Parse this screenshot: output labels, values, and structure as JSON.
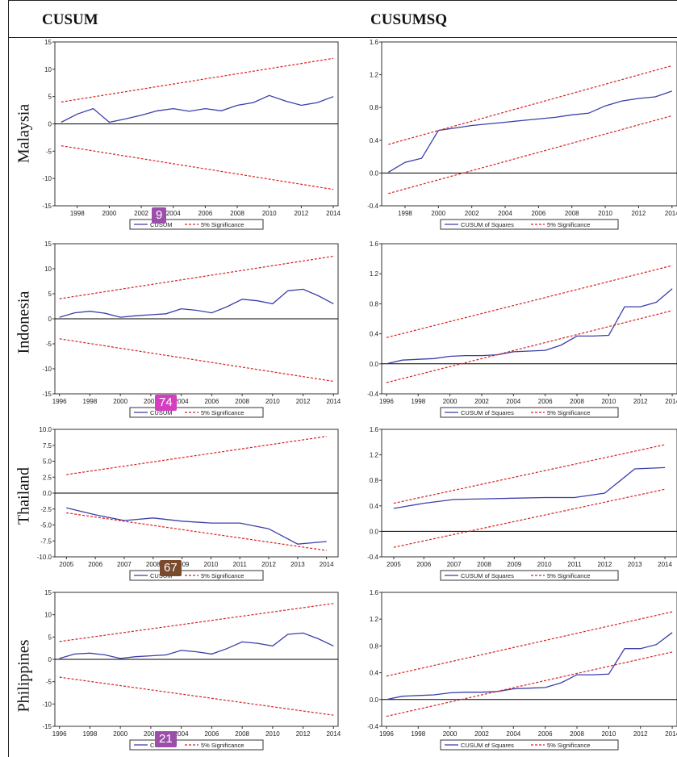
{
  "headers": {
    "cusum": "CUSUM",
    "cusumsq": "CUSUMSQ"
  },
  "rows": [
    {
      "label": "Malaysia"
    },
    {
      "label": "Indonesia"
    },
    {
      "label": "Thailand"
    },
    {
      "label": "Philippines"
    }
  ],
  "badges": [
    {
      "text": "9",
      "color": "#9b4fa8"
    },
    {
      "text": "74",
      "color": "#d63ec2"
    },
    {
      "text": "67",
      "color": "#7a4a2c"
    },
    {
      "text": "21",
      "color": "#9b4fa8"
    }
  ],
  "chart_data": [
    {
      "id": "malaysia-cusum",
      "type": "line",
      "x": [
        1997,
        1998,
        1999,
        2000,
        2001,
        2002,
        2003,
        2004,
        2005,
        2006,
        2007,
        2008,
        2009,
        2010,
        2011,
        2012,
        2013,
        2014
      ],
      "series": [
        {
          "name": "CUSUM",
          "color": "#3b3fa8",
          "style": "solid",
          "values": [
            0.3,
            1.8,
            2.8,
            0.3,
            0.9,
            1.6,
            2.4,
            2.8,
            2.3,
            2.8,
            2.4,
            3.4,
            3.9,
            5.2,
            4.2,
            3.4,
            3.9,
            5.0
          ]
        },
        {
          "name": "5% Significance",
          "color": "#d62020",
          "style": "dashed",
          "x": [
            1997,
            2014
          ],
          "values": [
            4.0,
            12.0
          ]
        },
        {
          "color": "#d62020",
          "style": "dashed",
          "x": [
            1997,
            2014
          ],
          "values": [
            -4.0,
            -12.0
          ]
        }
      ],
      "xlim": [
        1996.6,
        2014.3
      ],
      "ylim": [
        -15,
        15
      ],
      "yticks": [
        "15",
        "10",
        "5",
        "0",
        "-5",
        "-10",
        "-15"
      ],
      "ytick_values": [
        15,
        10,
        5,
        0,
        -5,
        -10,
        -15
      ],
      "xticks": [
        "1998",
        "2000",
        "2002",
        "2004",
        "2006",
        "2008",
        "2010",
        "2012",
        "2014"
      ],
      "xtick_values": [
        1998,
        2000,
        2002,
        2004,
        2006,
        2008,
        2010,
        2012,
        2014
      ],
      "legend": [
        "CUSUM",
        "5% Significance"
      ]
    },
    {
      "id": "malaysia-cusumsq",
      "type": "line",
      "x": [
        1997,
        1998,
        1999,
        2000,
        2001,
        2002,
        2003,
        2004,
        2005,
        2006,
        2007,
        2008,
        2009,
        2010,
        2011,
        2012,
        2013,
        2014
      ],
      "series": [
        {
          "name": "CUSUM of Squares",
          "color": "#3b3fa8",
          "style": "solid",
          "values": [
            0.01,
            0.13,
            0.18,
            0.52,
            0.55,
            0.58,
            0.6,
            0.62,
            0.64,
            0.66,
            0.68,
            0.71,
            0.73,
            0.82,
            0.88,
            0.91,
            0.93,
            1.0
          ]
        },
        {
          "name": "5% Significance",
          "color": "#d62020",
          "style": "dashed",
          "x": [
            1997,
            2014
          ],
          "values": [
            0.35,
            1.31
          ]
        },
        {
          "color": "#d62020",
          "style": "dashed",
          "x": [
            1997,
            2014
          ],
          "values": [
            -0.25,
            0.7
          ]
        }
      ],
      "xlim": [
        1996.6,
        2014.3
      ],
      "ylim": [
        -0.4,
        1.6
      ],
      "yticks": [
        "1.6",
        "1.2",
        "0.8",
        "0.4",
        "0.0",
        "-0.4"
      ],
      "ytick_values": [
        1.6,
        1.2,
        0.8,
        0.4,
        0.0,
        -0.4
      ],
      "xticks": [
        "1998",
        "2000",
        "2002",
        "2004",
        "2006",
        "2008",
        "2010",
        "2012",
        "2014"
      ],
      "xtick_values": [
        1998,
        2000,
        2002,
        2004,
        2006,
        2008,
        2010,
        2012,
        2014
      ],
      "legend": [
        "CUSUM of Squares",
        "5% Significance"
      ]
    },
    {
      "id": "indonesia-cusum",
      "type": "line",
      "x": [
        1996,
        1997,
        1998,
        1999,
        2000,
        2001,
        2002,
        2003,
        2004,
        2005,
        2006,
        2007,
        2008,
        2009,
        2010,
        2011,
        2012,
        2013,
        2014
      ],
      "series": [
        {
          "name": "CUSUM",
          "color": "#3b3fa8",
          "style": "solid",
          "values": [
            0.3,
            1.2,
            1.5,
            1.1,
            0.3,
            0.6,
            0.8,
            1.0,
            2.0,
            1.7,
            1.2,
            2.4,
            3.9,
            3.6,
            3.0,
            5.6,
            5.9,
            4.6,
            3.0
          ]
        },
        {
          "name": "5% Significance",
          "color": "#d62020",
          "style": "dashed",
          "x": [
            1996,
            2014
          ],
          "values": [
            4.0,
            12.5
          ]
        },
        {
          "color": "#d62020",
          "style": "dashed",
          "x": [
            1996,
            2014
          ],
          "values": [
            -4.0,
            -12.5
          ]
        }
      ],
      "xlim": [
        1995.7,
        2014.3
      ],
      "ylim": [
        -15,
        15
      ],
      "yticks": [
        "15",
        "10",
        "5",
        "0",
        "-5",
        "-10",
        "-15"
      ],
      "ytick_values": [
        15,
        10,
        5,
        0,
        -5,
        -10,
        -15
      ],
      "xticks": [
        "1996",
        "1998",
        "2000",
        "2002",
        "2004",
        "2006",
        "2008",
        "2010",
        "2012",
        "2014"
      ],
      "xtick_values": [
        1996,
        1998,
        2000,
        2002,
        2004,
        2006,
        2008,
        2010,
        2012,
        2014
      ],
      "legend": [
        "CUSUM",
        "5% Significance"
      ]
    },
    {
      "id": "indonesia-cusumsq",
      "type": "line",
      "x": [
        1996,
        1997,
        1998,
        1999,
        2000,
        2001,
        2002,
        2003,
        2004,
        2005,
        2006,
        2007,
        2008,
        2009,
        2010,
        2011,
        2012,
        2013,
        2014
      ],
      "series": [
        {
          "name": "CUSUM of Squares",
          "color": "#3b3fa8",
          "style": "solid",
          "values": [
            0.0,
            0.05,
            0.06,
            0.07,
            0.1,
            0.11,
            0.11,
            0.12,
            0.16,
            0.17,
            0.18,
            0.25,
            0.37,
            0.37,
            0.38,
            0.76,
            0.76,
            0.82,
            1.0
          ]
        },
        {
          "name": "5% Significance",
          "color": "#d62020",
          "style": "dashed",
          "x": [
            1996,
            2014
          ],
          "values": [
            0.35,
            1.31
          ]
        },
        {
          "color": "#d62020",
          "style": "dashed",
          "x": [
            1996,
            2014
          ],
          "values": [
            -0.25,
            0.71
          ]
        }
      ],
      "xlim": [
        1995.7,
        2014.3
      ],
      "ylim": [
        -0.4,
        1.6
      ],
      "yticks": [
        "1.6",
        "1.2",
        "0.8",
        "0.4",
        "0.0",
        "-0.4"
      ],
      "ytick_values": [
        1.6,
        1.2,
        0.8,
        0.4,
        0.0,
        -0.4
      ],
      "xticks": [
        "1996",
        "1998",
        "2000",
        "2002",
        "2004",
        "2006",
        "2008",
        "2010",
        "2012",
        "2014"
      ],
      "xtick_values": [
        1996,
        1998,
        2000,
        2002,
        2004,
        2006,
        2008,
        2010,
        2012,
        2014
      ],
      "legend": [
        "CUSUM of Squares",
        "5% Significance"
      ]
    },
    {
      "id": "thailand-cusum",
      "type": "line",
      "x": [
        2005,
        2006,
        2007,
        2008,
        2009,
        2010,
        2011,
        2012,
        2013,
        2014
      ],
      "series": [
        {
          "name": "CUSUM",
          "color": "#3b3fa8",
          "style": "solid",
          "values": [
            -2.3,
            -3.4,
            -4.3,
            -3.9,
            -4.4,
            -4.7,
            -4.7,
            -5.6,
            -8.0,
            -7.6
          ]
        },
        {
          "name": "5% Significance",
          "color": "#d62020",
          "style": "dashed",
          "x": [
            2005,
            2014
          ],
          "values": [
            2.9,
            8.9
          ]
        },
        {
          "color": "#d62020",
          "style": "dashed",
          "x": [
            2005,
            2014
          ],
          "values": [
            -3.1,
            -9.0
          ]
        }
      ],
      "xlim": [
        2004.6,
        2014.4
      ],
      "ylim": [
        -10,
        10
      ],
      "yticks": [
        "10.0",
        "7.5",
        "5.0",
        "2.5",
        "0.0",
        "-2.5",
        "-5.0",
        "-7.5",
        "-10.0"
      ],
      "ytick_values": [
        10,
        7.5,
        5,
        2.5,
        0,
        -2.5,
        -5,
        -7.5,
        -10
      ],
      "xticks": [
        "2005",
        "2006",
        "2007",
        "2008",
        "2009",
        "2010",
        "2011",
        "2012",
        "2013",
        "2014"
      ],
      "xtick_values": [
        2005,
        2006,
        2007,
        2008,
        2009,
        2010,
        2011,
        2012,
        2013,
        2014
      ],
      "legend": [
        "CUSUM",
        "5% Significance"
      ]
    },
    {
      "id": "thailand-cusumsq",
      "type": "line",
      "x": [
        2005,
        2006,
        2007,
        2008,
        2009,
        2010,
        2011,
        2012,
        2013,
        2014
      ],
      "series": [
        {
          "name": "CUSUM of Squares",
          "color": "#3b3fa8",
          "style": "solid",
          "values": [
            0.36,
            0.44,
            0.5,
            0.51,
            0.52,
            0.53,
            0.53,
            0.6,
            0.98,
            1.0
          ]
        },
        {
          "name": "5% Significance",
          "color": "#d62020",
          "style": "dashed",
          "x": [
            2005,
            2014
          ],
          "values": [
            0.44,
            1.36
          ]
        },
        {
          "color": "#d62020",
          "style": "dashed",
          "x": [
            2005,
            2014
          ],
          "values": [
            -0.25,
            0.66
          ]
        }
      ],
      "xlim": [
        2004.6,
        2014.4
      ],
      "ylim": [
        -0.4,
        1.6
      ],
      "yticks": [
        "1.6",
        "1.2",
        "0.8",
        "0.4",
        "0.0",
        "-0.4"
      ],
      "ytick_values": [
        1.6,
        1.2,
        0.8,
        0.4,
        0.0,
        -0.4
      ],
      "xticks": [
        "2005",
        "2006",
        "2007",
        "2008",
        "2009",
        "2010",
        "2011",
        "2012",
        "2013",
        "2014"
      ],
      "xtick_values": [
        2005,
        2006,
        2007,
        2008,
        2009,
        2010,
        2011,
        2012,
        2013,
        2014
      ],
      "legend": [
        "CUSUM of Squares",
        "5% Significance"
      ]
    },
    {
      "id": "philippines-cusum",
      "type": "line",
      "x": [
        1996,
        1997,
        1998,
        1999,
        2000,
        2001,
        2002,
        2003,
        2004,
        2005,
        2006,
        2007,
        2008,
        2009,
        2010,
        2011,
        2012,
        2013,
        2014
      ],
      "series": [
        {
          "name": "CUSUM",
          "color": "#3b3fa8",
          "style": "solid",
          "values": [
            0.2,
            1.2,
            1.4,
            1.0,
            0.2,
            0.6,
            0.8,
            1.0,
            2.0,
            1.7,
            1.2,
            2.4,
            3.9,
            3.6,
            3.0,
            5.6,
            5.9,
            4.6,
            3.0
          ]
        },
        {
          "name": "5% Significance",
          "color": "#d62020",
          "style": "dashed",
          "x": [
            1996,
            2014
          ],
          "values": [
            4.0,
            12.5
          ]
        },
        {
          "color": "#d62020",
          "style": "dashed",
          "x": [
            1996,
            2014
          ],
          "values": [
            -4.0,
            -12.5
          ]
        }
      ],
      "xlim": [
        1995.7,
        2014.3
      ],
      "ylim": [
        -15,
        15
      ],
      "yticks": [
        "15",
        "10",
        "5",
        "0",
        "-5",
        "-10",
        "-15"
      ],
      "ytick_values": [
        15,
        10,
        5,
        0,
        -5,
        -10,
        -15
      ],
      "xticks": [
        "1996",
        "1998",
        "2000",
        "2002",
        "2004",
        "2006",
        "2008",
        "2010",
        "2012",
        "2014"
      ],
      "xtick_values": [
        1996,
        1998,
        2000,
        2002,
        2004,
        2006,
        2008,
        2010,
        2012,
        2014
      ],
      "legend": [
        "CUSUM",
        "5% Significance"
      ]
    },
    {
      "id": "philippines-cusumsq",
      "type": "line",
      "x": [
        1996,
        1997,
        1998,
        1999,
        2000,
        2001,
        2002,
        2003,
        2004,
        2005,
        2006,
        2007,
        2008,
        2009,
        2010,
        2011,
        2012,
        2013,
        2014
      ],
      "series": [
        {
          "name": "CUSUM of Squares",
          "color": "#3b3fa8",
          "style": "solid",
          "values": [
            0.0,
            0.05,
            0.06,
            0.07,
            0.1,
            0.11,
            0.11,
            0.12,
            0.16,
            0.17,
            0.18,
            0.25,
            0.37,
            0.37,
            0.38,
            0.76,
            0.76,
            0.82,
            1.0
          ]
        },
        {
          "name": "5% Significance",
          "color": "#d62020",
          "style": "dashed",
          "x": [
            1996,
            2014
          ],
          "values": [
            0.35,
            1.31
          ]
        },
        {
          "color": "#d62020",
          "style": "dashed",
          "x": [
            1996,
            2014
          ],
          "values": [
            -0.25,
            0.71
          ]
        }
      ],
      "xlim": [
        1995.7,
        2014.3
      ],
      "ylim": [
        -0.4,
        1.6
      ],
      "yticks": [
        "1.6",
        "1.2",
        "0.8",
        "0.4",
        "0.0",
        "-0.4"
      ],
      "ytick_values": [
        1.6,
        1.2,
        0.8,
        0.4,
        0.0,
        -0.4
      ],
      "xticks": [
        "1996",
        "1998",
        "2000",
        "2002",
        "2004",
        "2006",
        "2008",
        "2010",
        "2012",
        "2014"
      ],
      "xtick_values": [
        1996,
        1998,
        2000,
        2002,
        2004,
        2006,
        2008,
        2010,
        2012,
        2014
      ],
      "legend": [
        "CUSUM of Squares",
        "5% Significance"
      ]
    }
  ]
}
